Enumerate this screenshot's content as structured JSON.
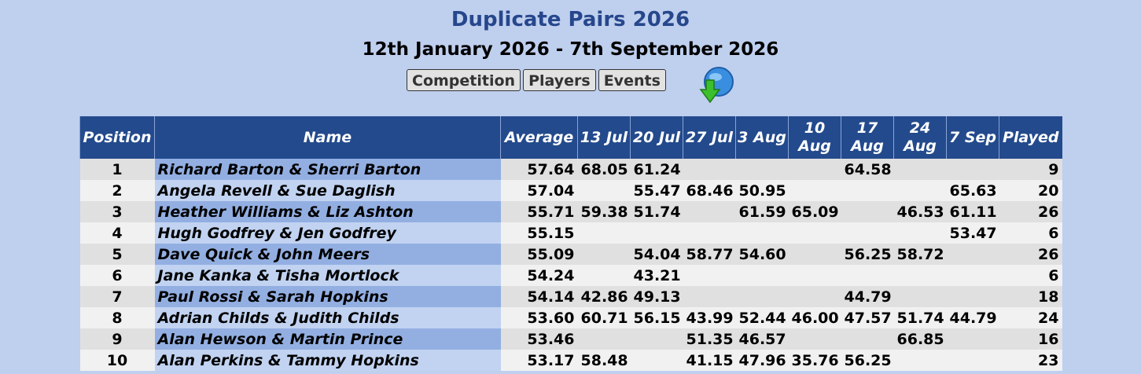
{
  "header": {
    "title": "Duplicate Pairs 2026",
    "subtitle": "12th January 2026 - 7th September 2026",
    "buttons": [
      "Competition",
      "Players",
      "Events"
    ]
  },
  "table": {
    "columns": [
      "Position",
      "Name",
      "Average",
      "13 Jul",
      "20 Jul",
      "27 Jul",
      "3 Aug",
      "10 Aug",
      "17 Aug",
      "24 Aug",
      "7 Sep",
      "Played"
    ],
    "rows": [
      [
        "1",
        "Richard Barton & Sherri Barton",
        "57.64",
        "68.05",
        "61.24",
        null,
        null,
        null,
        "64.58",
        null,
        null,
        "9"
      ],
      [
        "2",
        "Angela Revell & Sue Daglish",
        "57.04",
        null,
        "55.47",
        "68.46",
        "50.95",
        null,
        null,
        null,
        "65.63",
        "20"
      ],
      [
        "3",
        "Heather Williams & Liz Ashton",
        "55.71",
        "59.38",
        "51.74",
        null,
        "61.59",
        "65.09",
        null,
        "46.53",
        "61.11",
        "26"
      ],
      [
        "4",
        "Hugh Godfrey & Jen Godfrey",
        "55.15",
        null,
        null,
        null,
        null,
        null,
        null,
        null,
        "53.47",
        "6"
      ],
      [
        "5",
        "Dave Quick & John Meers",
        "55.09",
        null,
        "54.04",
        "58.77",
        "54.60",
        null,
        "56.25",
        "58.72",
        null,
        "26"
      ],
      [
        "6",
        "Jane Kanka & Tisha Mortlock",
        "54.24",
        null,
        "43.21",
        null,
        null,
        null,
        null,
        null,
        null,
        "6"
      ],
      [
        "7",
        "Paul Rossi & Sarah Hopkins",
        "54.14",
        "42.86",
        "49.13",
        null,
        null,
        null,
        "44.79",
        null,
        null,
        "18"
      ],
      [
        "8",
        "Adrian Childs & Judith Childs",
        "53.60",
        "60.71",
        "56.15",
        "43.99",
        "52.44",
        "46.00",
        "47.57",
        "51.74",
        "44.79",
        "24"
      ],
      [
        "9",
        "Alan Hewson & Martin Prince",
        "53.46",
        null,
        null,
        "51.35",
        "46.57",
        null,
        null,
        "66.85",
        null,
        "16"
      ],
      [
        "10",
        "Alan Perkins & Tammy Hopkins",
        "53.17",
        "58.48",
        null,
        "41.15",
        "47.96",
        "35.76",
        "56.25",
        null,
        null,
        "23"
      ]
    ]
  }
}
